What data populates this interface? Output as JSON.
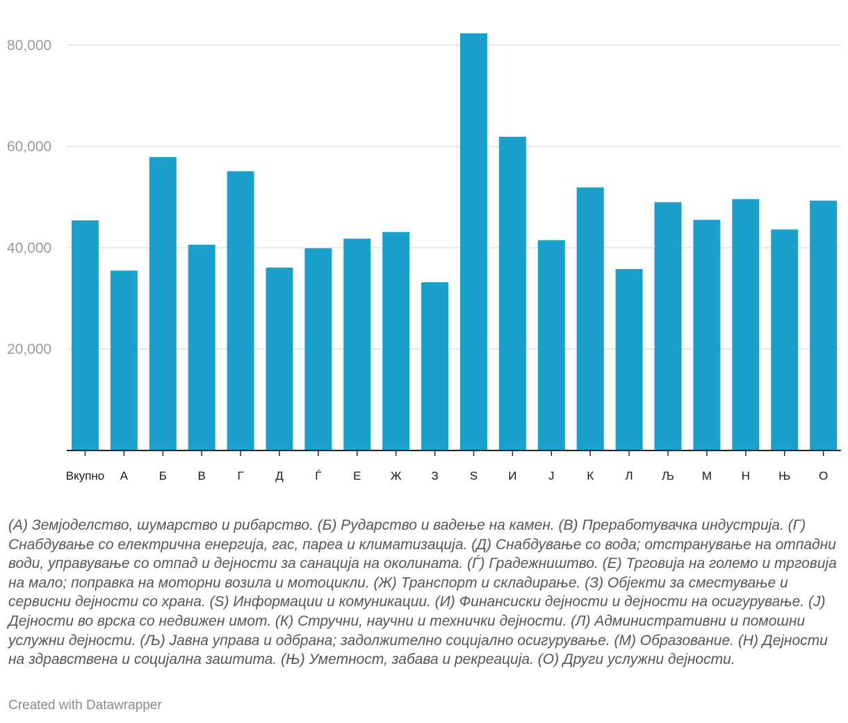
{
  "chart_data": {
    "type": "bar",
    "categories": [
      "Вкупно",
      "А",
      "Б",
      "В",
      "Г",
      "Д",
      "Ѓ",
      "Е",
      "Ж",
      "З",
      "S",
      "И",
      "Ј",
      "К",
      "Л",
      "Љ",
      "М",
      "Н",
      "Њ",
      "О"
    ],
    "values": [
      45400,
      35500,
      57900,
      40600,
      55100,
      36100,
      39900,
      41800,
      43100,
      33200,
      82300,
      61900,
      41500,
      51900,
      35800,
      49000,
      45500,
      49600,
      43600,
      49300
    ],
    "ylim": [
      0,
      82300
    ],
    "yticks": [
      20000,
      40000,
      60000,
      80000
    ],
    "ytick_labels": [
      "20,000",
      "40,000",
      "60,000",
      "80,000"
    ],
    "bar_color": "#1aa0cc",
    "grid": true,
    "title": "",
    "xlabel": "",
    "ylabel": ""
  },
  "notes": "(А) Земјоделство, шумарство и рибарство. (Б) Рударство и вадење на камен. (В) Преработувачка индустрија. (Г) Снабдување со електрична енергија, гас, пареа и климатизација. (Д) Снабдување со вода; отстранување на отпадни води, управување со отпад и дејности за санација на околината. (Ѓ) Градежништво. (Е) Трговија на големо и трговија на мало; поправка на моторни возила и мотоцикли. (Ж) Транспорт и складирање. (З) Објекти за сместување и сервисни дејности со храна. (S) Информации и комуникации. (И) Финансиски дејности и дејности на осигурување. (Ј) Дејности во врска со недвижен имот. (К) Стручни, научни и технички дејности. (Л) Административни и помошни услужни дејности. (Љ) Јавна управа и одбрана; задолжително социјално осигурување. (М) Образование. (Н) Дејности на здравствена и социјална заштита. (Њ) Уметност, забава и рекреација. (О) Други услужни дејности.",
  "credit": "Created with Datawrapper"
}
